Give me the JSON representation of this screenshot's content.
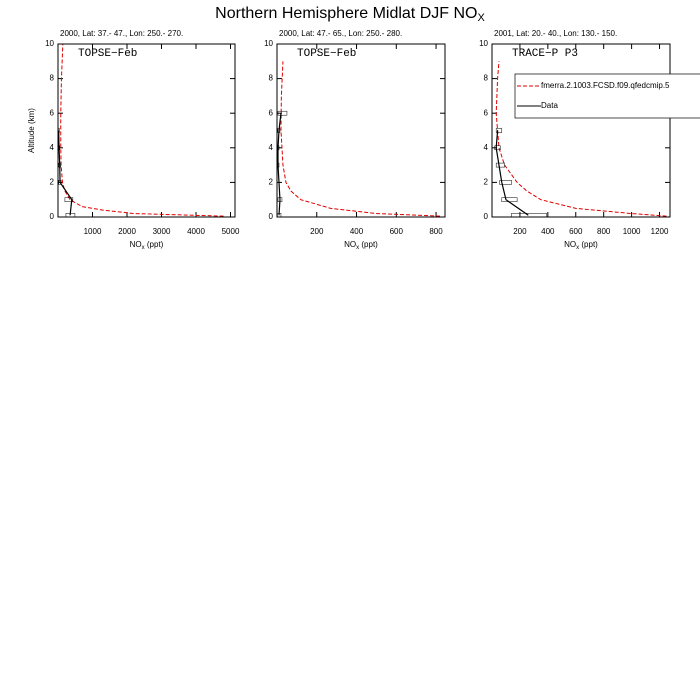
{
  "title": "Northern Hemisphere Midlat DJF NO",
  "title_sub": "X",
  "chart_data": [
    {
      "type": "profile",
      "subtitle": "2000, Lat: 37.- 47., Lon: 250.- 270.",
      "label": "TOPSE−Feb",
      "ylabel": "Altitude (km)",
      "xlabel": [
        "NO",
        "x",
        " (ppt)"
      ],
      "xlim": [
        0,
        5130
      ],
      "xticks": [
        1000,
        2000,
        3000,
        4000,
        5000
      ],
      "ylim": [
        0,
        10
      ],
      "yticks": [
        0,
        2,
        4,
        6,
        8,
        10
      ],
      "series": [
        {
          "color": "#e00000",
          "dash": true,
          "y": [
            0.05,
            0.2,
            0.4,
            0.6,
            1,
            1.5,
            2,
            3,
            4,
            6,
            8,
            10
          ],
          "values": [
            4800,
            2200,
            1300,
            700,
            350,
            200,
            130,
            90,
            80,
            80,
            100,
            140
          ]
        },
        {
          "color": "#000000",
          "dash": false,
          "y": [
            0.1,
            1,
            2,
            3,
            4,
            5
          ],
          "values": [
            350,
            400,
            60,
            50,
            30,
            20
          ],
          "box_low": [
            230,
            200,
            20,
            20,
            10,
            10
          ],
          "box_high": [
            490,
            430,
            90,
            80,
            50,
            40
          ]
        }
      ]
    },
    {
      "type": "profile",
      "subtitle": "2000, Lat: 47.- 65., Lon: 250.- 280.",
      "label": "TOPSE−Feb",
      "xlabel": [
        "NO",
        "x",
        " (ppt)"
      ],
      "xlim": [
        0,
        845
      ],
      "xticks": [
        200,
        400,
        600,
        800
      ],
      "ylim": [
        0,
        10
      ],
      "yticks": [
        0,
        2,
        4,
        6,
        8,
        10
      ],
      "series": [
        {
          "color": "#e00000",
          "dash": true,
          "y": [
            0.05,
            0.2,
            0.5,
            1,
            1.5,
            2,
            3,
            5,
            7,
            9
          ],
          "values": [
            820,
            500,
            270,
            120,
            70,
            45,
            30,
            20,
            22,
            30
          ]
        },
        {
          "color": "#000000",
          "dash": false,
          "y": [
            0.1,
            1,
            3,
            4,
            5,
            6
          ],
          "values": [
            10,
            15,
            5,
            5,
            10,
            20
          ],
          "box_low": [
            2,
            5,
            2,
            2,
            4,
            5
          ],
          "box_high": [
            20,
            25,
            10,
            10,
            15,
            50
          ]
        }
      ]
    },
    {
      "type": "profile",
      "subtitle": "2001, Lat: 20.- 40., Lon: 130.- 150.",
      "label": "TRACE−P P3",
      "xlabel": [
        "NO",
        "x",
        " (ppt)"
      ],
      "xlim": [
        0,
        1275
      ],
      "xticks": [
        200,
        400,
        600,
        800,
        1000,
        1200
      ],
      "ylim": [
        0,
        10
      ],
      "yticks": [
        0,
        2,
        4,
        6,
        8,
        10
      ],
      "legend": "upper right",
      "series": [
        {
          "name": "fmerra.2.1003.FCSD.f09.qfedcmip.5",
          "color": "#e00000",
          "dash": true,
          "y": [
            0.05,
            0.2,
            0.5,
            1,
            1.5,
            2,
            3,
            4,
            6,
            8,
            9
          ],
          "values": [
            1250,
            1000,
            600,
            350,
            250,
            180,
            90,
            50,
            30,
            40,
            50
          ]
        },
        {
          "name": "Data",
          "color": "#000000",
          "dash": false,
          "y": [
            0.1,
            1,
            2,
            3,
            4,
            5
          ],
          "values": [
            260,
            100,
            70,
            50,
            30,
            40
          ],
          "box_low": [
            140,
            70,
            55,
            30,
            20,
            30
          ],
          "box_high": [
            390,
            180,
            140,
            90,
            60,
            70
          ]
        }
      ]
    }
  ]
}
